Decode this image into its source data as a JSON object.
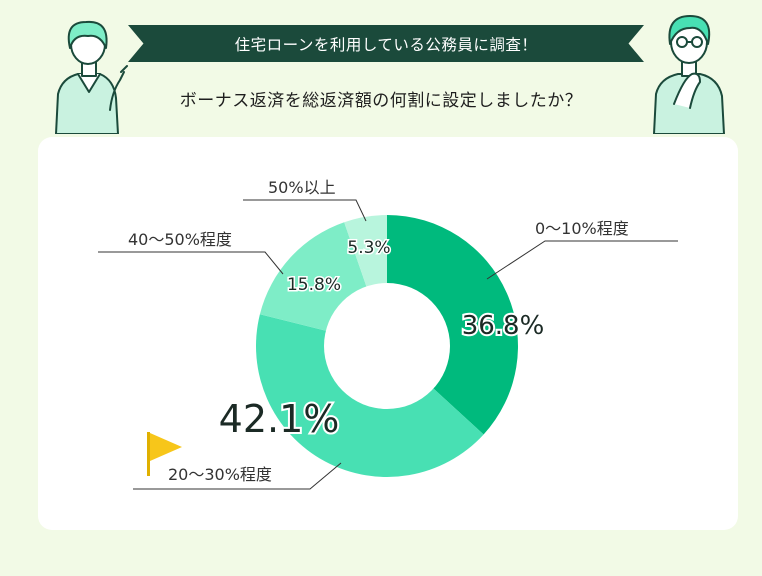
{
  "header": {
    "banner": "住宅ローンを利用している公務員に調査！",
    "question": "ボーナス返済を総返済額の何割に設定しましたか？"
  },
  "chart_data": {
    "type": "pie",
    "donut": true,
    "categories": [
      "0〜10%程度",
      "20〜30%程度",
      "40〜50%程度",
      "50%以上"
    ],
    "values": [
      36.8,
      42.1,
      15.8,
      5.3
    ],
    "value_labels": [
      "36.8%",
      "42.1%",
      "15.8%",
      "5.3%"
    ],
    "colors": [
      "#00ba7d",
      "#48e0b3",
      "#7eedc7",
      "#b8f5dd"
    ],
    "highlight": "20〜30%程度",
    "highlight_color": "#f7c61a"
  }
}
